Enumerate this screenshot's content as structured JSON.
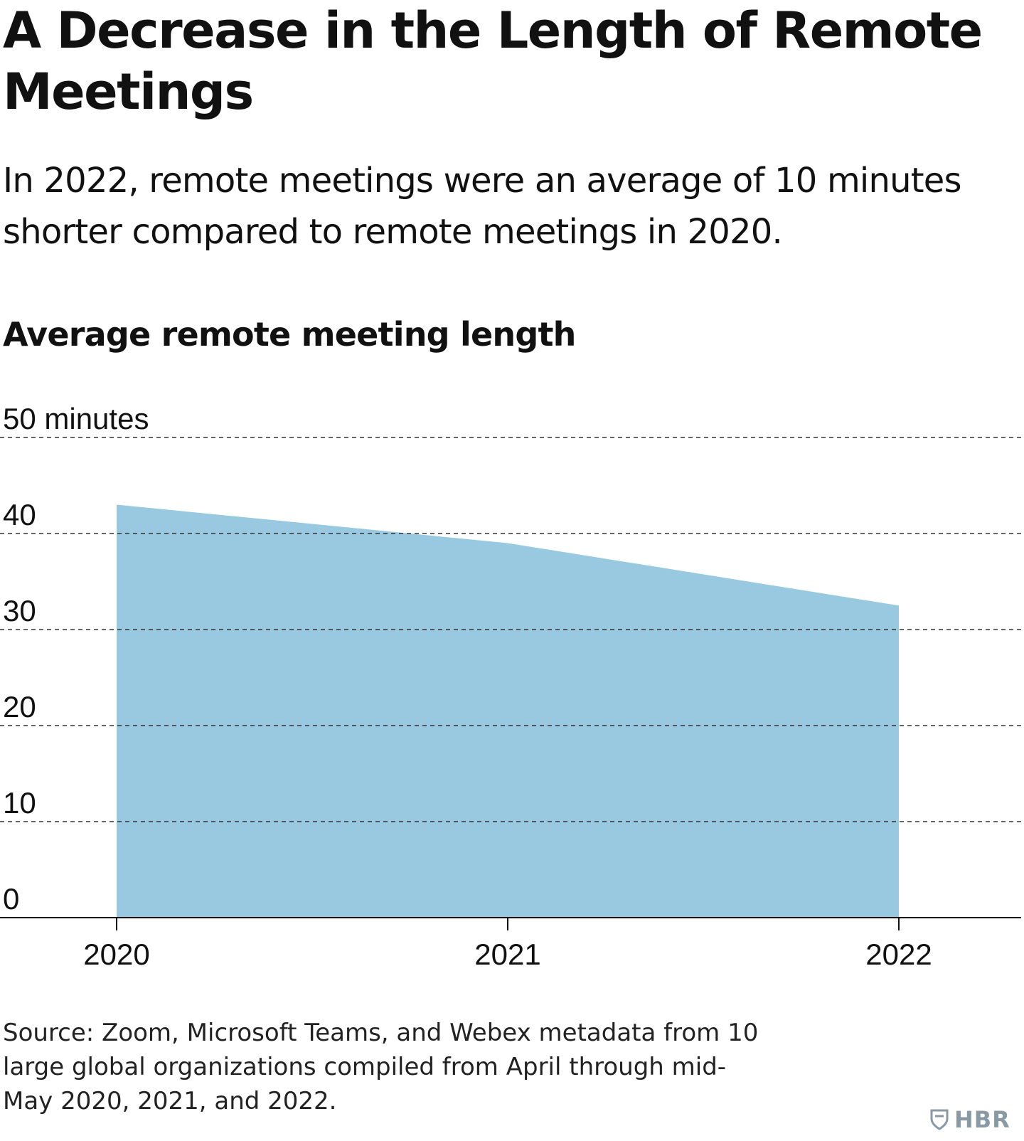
{
  "header": {
    "title": "A Decrease in the Length of Remote Meetings",
    "subtitle": "In 2022, remote meetings were an average of 10 minutes shorter compared to remote meetings in 2020."
  },
  "chart_data": {
    "type": "area",
    "title": "Average remote meeting length",
    "x": [
      "2020",
      "2021",
      "2022"
    ],
    "series": [
      {
        "values": [
          43,
          39,
          32.5
        ]
      }
    ],
    "ylim": [
      0,
      50
    ],
    "yticks": [
      0,
      10,
      20,
      30,
      40,
      50
    ],
    "ytick_labels": [
      "0",
      "10",
      "20",
      "30",
      "40",
      "50 minutes"
    ],
    "grid": true,
    "fill_color": "#99c9e0"
  },
  "footer": {
    "source": "Source: Zoom, Microsoft Teams, and Webex metadata from 10 large global organizations compiled from April through mid-May 2020, 2021, and 2022.",
    "brand": "HBR"
  },
  "colors": {
    "area": "#99c9e0",
    "text": "#111111",
    "gridline": "#333333",
    "brand": "#8a9aa4"
  }
}
